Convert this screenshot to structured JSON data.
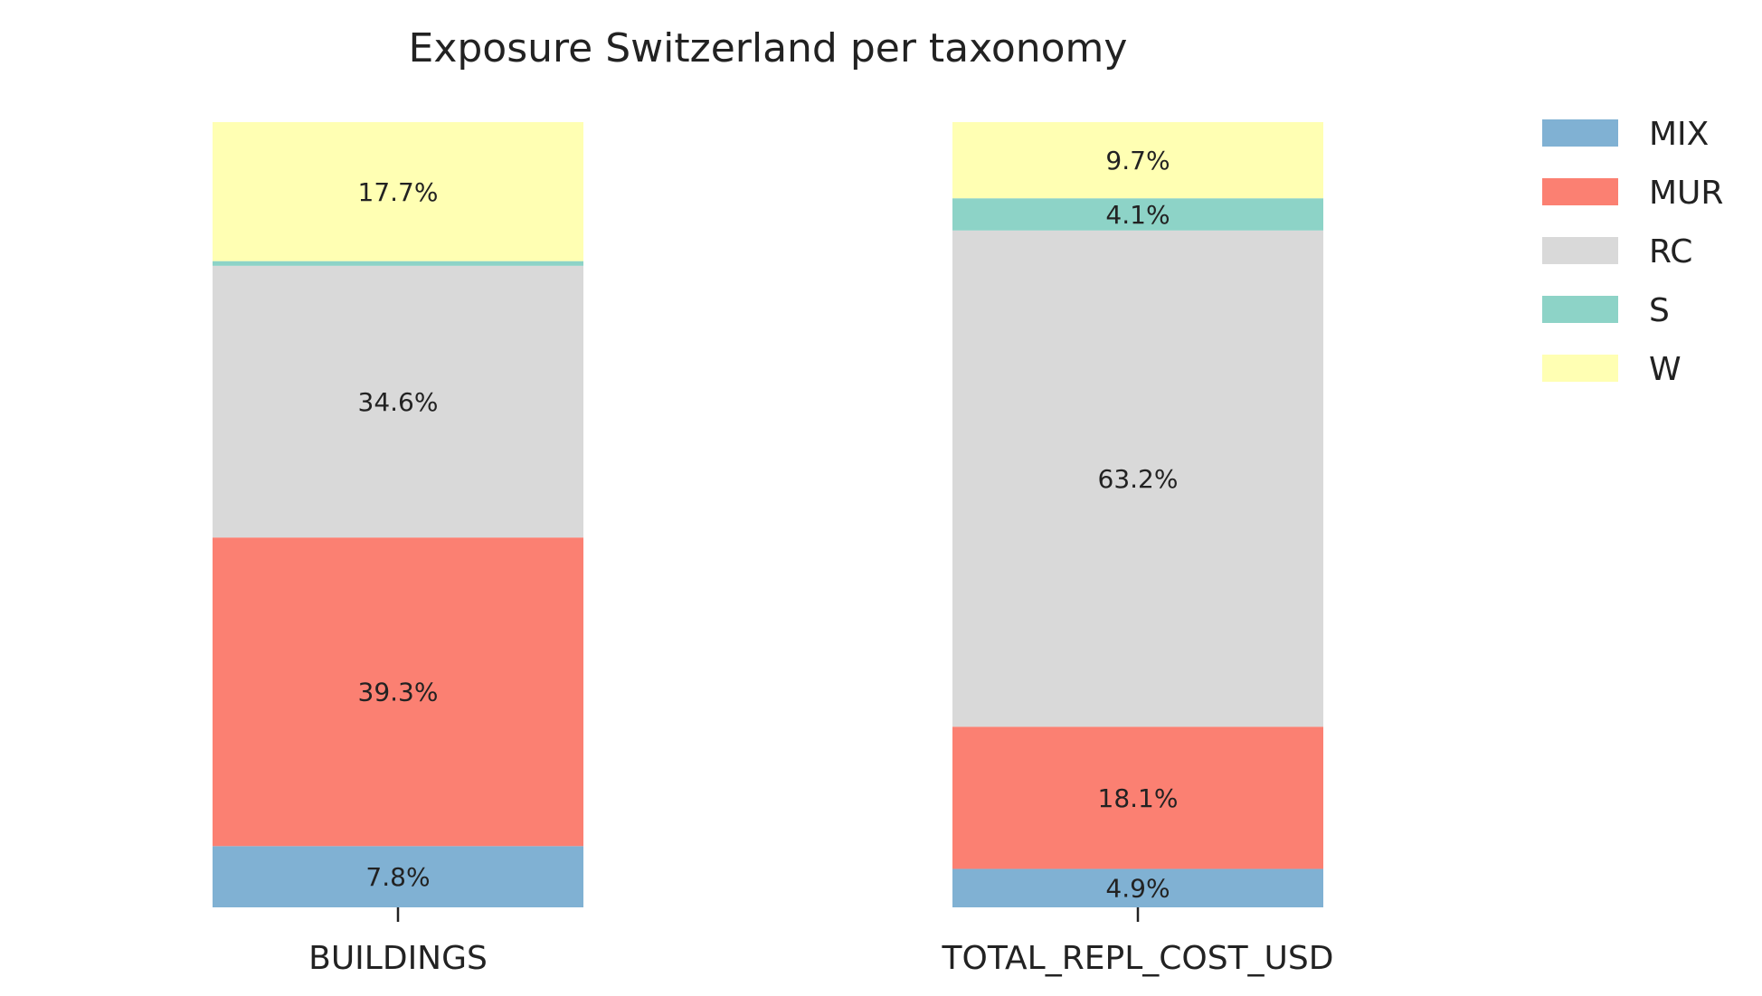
{
  "chart_data": {
    "type": "bar",
    "stacked": true,
    "normalized": true,
    "title": "Exposure Switzerland per taxonomy",
    "xlabel": "",
    "ylabel": "",
    "ylim": [
      0,
      100
    ],
    "grid": false,
    "legend_position": "top-right",
    "categories": [
      "BUILDINGS",
      "TOTAL_REPL_COST_USD"
    ],
    "series": [
      {
        "name": "MIX",
        "color": "#80b1d3",
        "values": [
          7.8,
          4.9
        ],
        "labels": [
          "7.8%",
          "4.9%"
        ]
      },
      {
        "name": "MUR",
        "color": "#fb8072",
        "values": [
          39.3,
          18.1
        ],
        "labels": [
          "39.3%",
          "18.1%"
        ]
      },
      {
        "name": "RC",
        "color": "#d9d9d9",
        "values": [
          34.6,
          63.2
        ],
        "labels": [
          "34.6%",
          "63.2%"
        ]
      },
      {
        "name": "S",
        "color": "#8dd3c7",
        "values": [
          0.6,
          4.1
        ],
        "labels": [
          "",
          "4.1%"
        ]
      },
      {
        "name": "W",
        "color": "#ffffb3",
        "values": [
          17.7,
          9.7
        ],
        "labels": [
          "17.7%",
          "9.7%"
        ]
      }
    ]
  }
}
